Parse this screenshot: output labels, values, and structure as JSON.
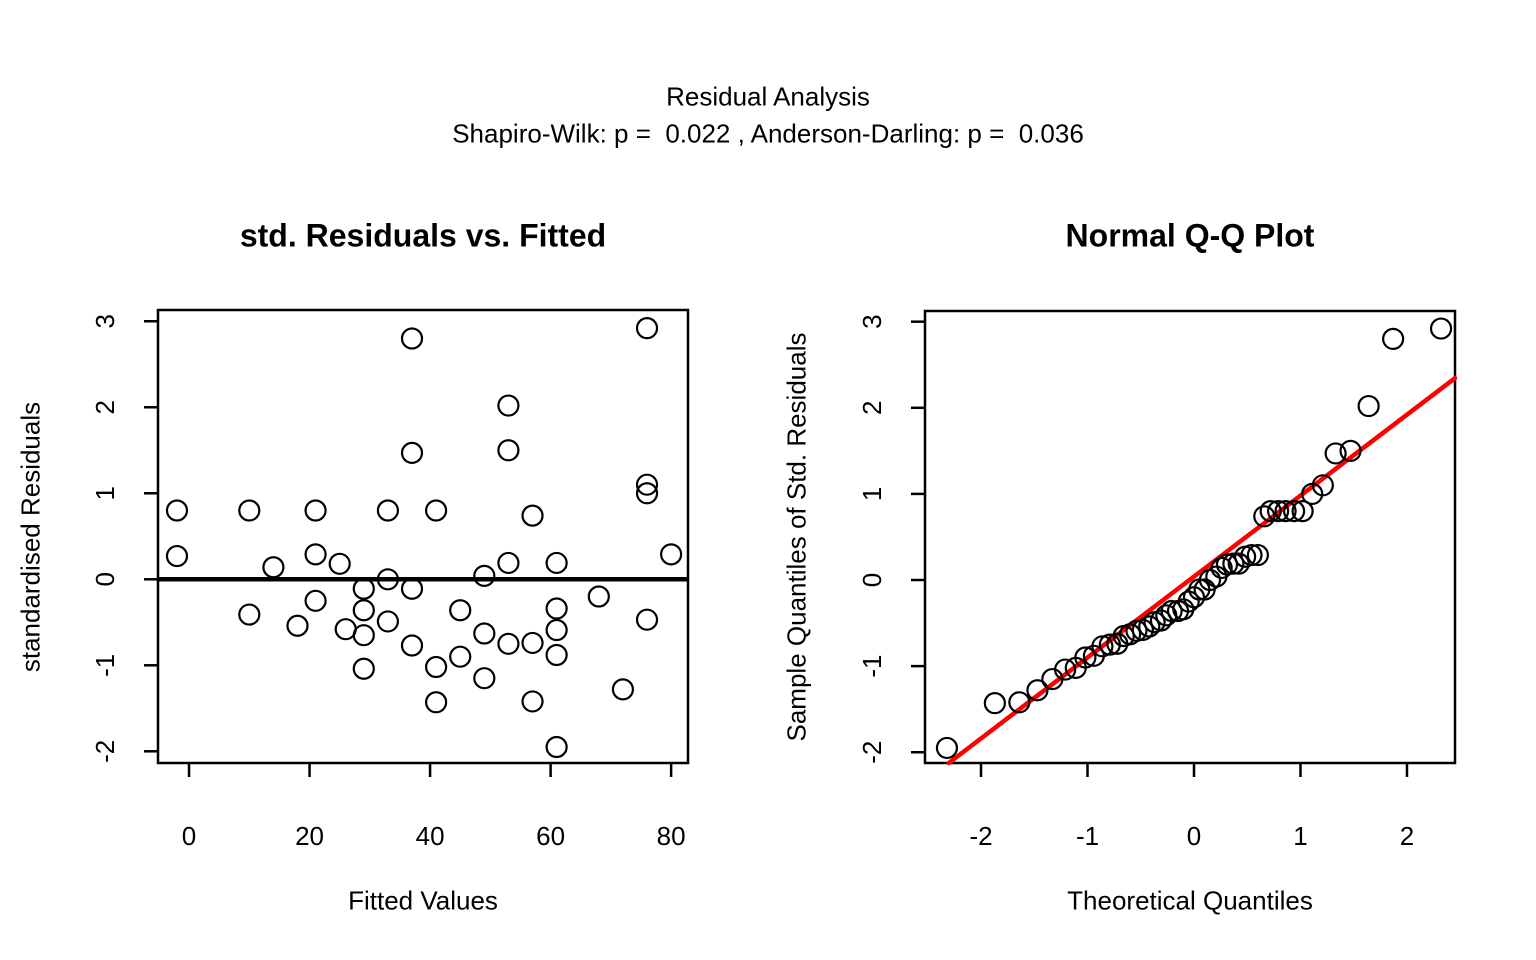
{
  "header": {
    "title": "Residual Analysis",
    "subtitle": "Shapiro-Wilk: p =  0.022 , Anderson-Darling: p =  0.036",
    "shapiro_wilk_p": "0.022",
    "anderson_darling_p": "0.036"
  },
  "colors": {
    "background": "#ffffff",
    "point_stroke": "#000000",
    "axis": "#000000",
    "zero_line": "#000000",
    "qq_line": "#ff0000"
  },
  "chart_data": [
    {
      "type": "scatter",
      "title": "std. Residuals vs. Fitted",
      "xlabel": "Fitted Values",
      "ylabel": "standardised Residuals",
      "xticks": [
        0,
        20,
        40,
        60,
        80
      ],
      "yticks": [
        -2,
        -1,
        0,
        1,
        2,
        3
      ],
      "xlim": [
        -5.15,
        82.8
      ],
      "ylim": [
        -2.136,
        3.131
      ],
      "grid": false,
      "hline": 0,
      "points": [
        [
          -2,
          0.8
        ],
        [
          -2,
          0.27
        ],
        [
          10,
          0.8
        ],
        [
          10,
          -0.41
        ],
        [
          14,
          0.14
        ],
        [
          18,
          -0.54
        ],
        [
          21,
          0.8
        ],
        [
          21,
          0.29
        ],
        [
          21,
          -0.25
        ],
        [
          25,
          0.18
        ],
        [
          26,
          -0.58
        ],
        [
          29,
          -0.11
        ],
        [
          29,
          -0.36
        ],
        [
          29,
          -0.65
        ],
        [
          29,
          -1.04
        ],
        [
          33,
          0.8
        ],
        [
          33,
          0
        ],
        [
          33,
          -0.49
        ],
        [
          37,
          2.8
        ],
        [
          37,
          1.47
        ],
        [
          37,
          -0.11
        ],
        [
          37,
          -0.77
        ],
        [
          41,
          0.8
        ],
        [
          41,
          -1.02
        ],
        [
          41,
          -1.43
        ],
        [
          45,
          -0.36
        ],
        [
          45,
          -0.9
        ],
        [
          49,
          0.04
        ],
        [
          49,
          -0.63
        ],
        [
          49,
          -1.15
        ],
        [
          53,
          2.02
        ],
        [
          53,
          1.5
        ],
        [
          53,
          0.19
        ],
        [
          53,
          -0.75
        ],
        [
          57,
          0.74
        ],
        [
          57,
          -0.74
        ],
        [
          57,
          -1.42
        ],
        [
          61,
          0.19
        ],
        [
          61,
          -0.34
        ],
        [
          61,
          -0.59
        ],
        [
          61,
          -0.88
        ],
        [
          61,
          -1.95
        ],
        [
          68,
          -0.2
        ],
        [
          72,
          -1.28
        ],
        [
          76,
          2.92
        ],
        [
          76,
          1.1
        ],
        [
          76,
          1.0
        ],
        [
          76,
          -0.47
        ],
        [
          80,
          0.29
        ]
      ]
    },
    {
      "type": "scatter",
      "title": "Normal Q-Q Plot",
      "xlabel": "Theoretical Quantiles",
      "ylabel": "Sample Quantiles of Std. Residuals",
      "xticks": [
        -2,
        -1,
        0,
        1,
        2
      ],
      "yticks": [
        -2,
        -1,
        0,
        1,
        2,
        3
      ],
      "xlim": [
        -2.526,
        2.451
      ],
      "ylim": [
        -2.125,
        3.124
      ],
      "grid": false,
      "ref_line": {
        "slope": 0.94,
        "intercept": 0.04,
        "color": "#ff0000"
      },
      "points": [
        [
          -2.32,
          -1.95
        ],
        [
          -1.87,
          -1.43
        ],
        [
          -1.64,
          -1.42
        ],
        [
          -1.47,
          -1.28
        ],
        [
          -1.33,
          -1.15
        ],
        [
          -1.21,
          -1.04
        ],
        [
          -1.11,
          -1.02
        ],
        [
          -1.02,
          -0.9
        ],
        [
          -0.94,
          -0.88
        ],
        [
          -0.86,
          -0.77
        ],
        [
          -0.79,
          -0.75
        ],
        [
          -0.72,
          -0.74
        ],
        [
          -0.66,
          -0.65
        ],
        [
          -0.6,
          -0.63
        ],
        [
          -0.54,
          -0.59
        ],
        [
          -0.48,
          -0.58
        ],
        [
          -0.42,
          -0.54
        ],
        [
          -0.37,
          -0.49
        ],
        [
          -0.31,
          -0.47
        ],
        [
          -0.26,
          -0.41
        ],
        [
          -0.21,
          -0.36
        ],
        [
          -0.15,
          -0.36
        ],
        [
          -0.1,
          -0.34
        ],
        [
          -0.05,
          -0.25
        ],
        [
          0,
          -0.2
        ],
        [
          0.05,
          -0.11
        ],
        [
          0.1,
          -0.11
        ],
        [
          0.15,
          0
        ],
        [
          0.21,
          0.04
        ],
        [
          0.26,
          0.14
        ],
        [
          0.31,
          0.18
        ],
        [
          0.37,
          0.19
        ],
        [
          0.42,
          0.19
        ],
        [
          0.48,
          0.27
        ],
        [
          0.54,
          0.29
        ],
        [
          0.6,
          0.29
        ],
        [
          0.66,
          0.74
        ],
        [
          0.72,
          0.8
        ],
        [
          0.79,
          0.8
        ],
        [
          0.86,
          0.8
        ],
        [
          0.94,
          0.8
        ],
        [
          1.02,
          0.8
        ],
        [
          1.11,
          1.0
        ],
        [
          1.21,
          1.1
        ],
        [
          1.33,
          1.47
        ],
        [
          1.47,
          1.5
        ],
        [
          1.64,
          2.02
        ],
        [
          1.87,
          2.8
        ],
        [
          2.32,
          2.92
        ]
      ]
    }
  ]
}
